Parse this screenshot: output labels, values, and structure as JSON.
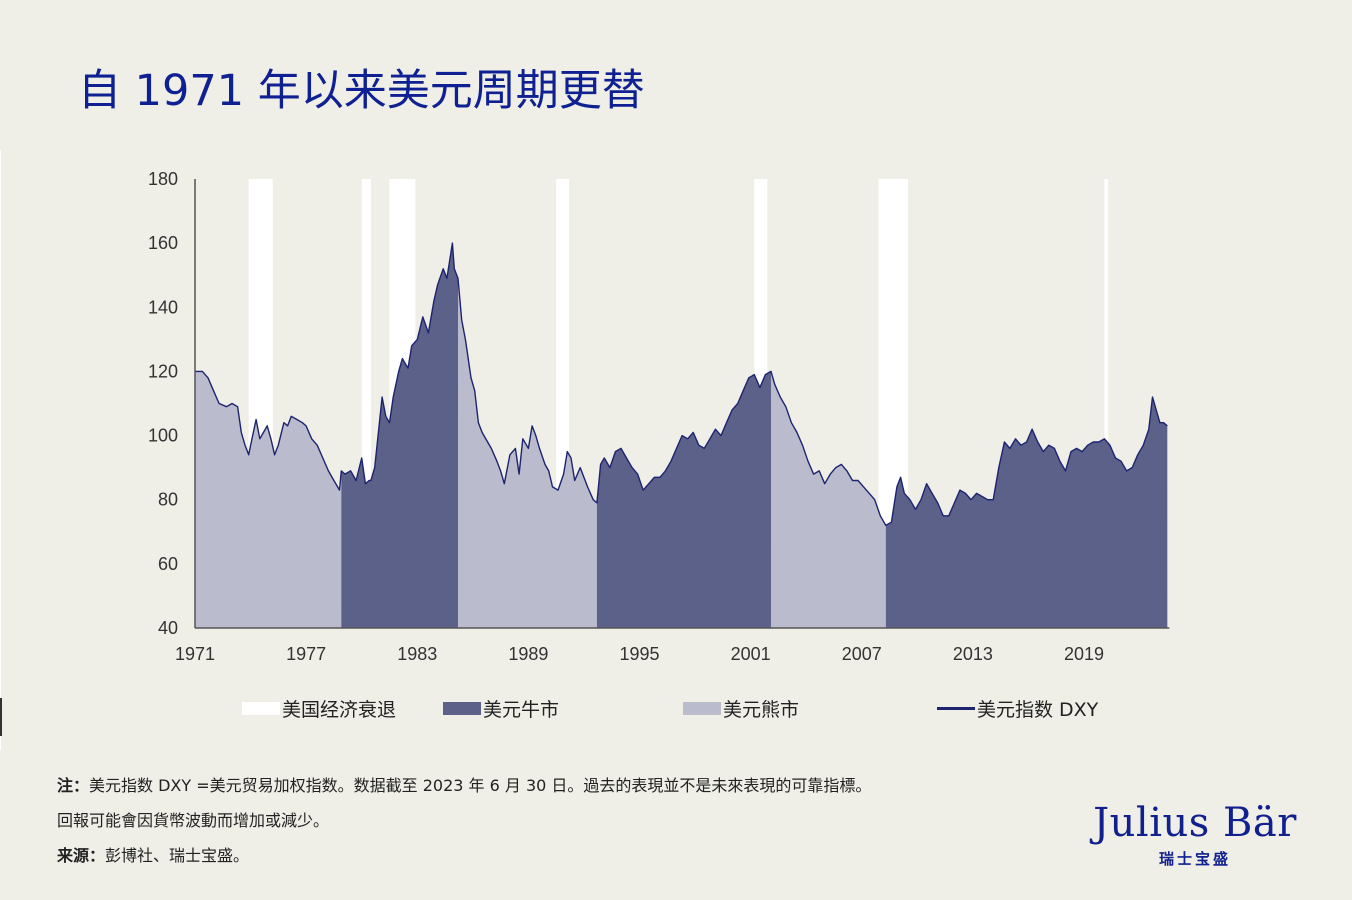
{
  "title": "自 1971 年以来美元周期更替",
  "colors": {
    "background": "#efeee7",
    "title": "#0f2192",
    "recession": "#ffffff",
    "bull": "#5b6189",
    "bear": "#babbcd",
    "dxy_line": "#1c2470",
    "axis": "#555555"
  },
  "legend": {
    "recession": "美国经济衰退",
    "bull": "美元牛市",
    "bear": "美元熊市",
    "dxy": "美元指数 DXY"
  },
  "notes": {
    "note_label": "注：",
    "note_text": "美元指数 DXY =美元贸易加权指数。数据截至 2023 年 6 月 30 日。過去的表現並不是未來表現的可靠指標。",
    "line2": "回報可能會因貨幣波動而增加或減少。",
    "source_label": "来源：",
    "source_text": "彭博社、瑞士宝盛。"
  },
  "logo": {
    "name": "Julius Bär",
    "sub": "瑞士宝盛"
  },
  "chart_data": {
    "type": "area",
    "title": "自 1971 年以来美元周期更替",
    "xlabel": "",
    "ylabel": "",
    "xlim": [
      1971,
      2023.5
    ],
    "ylim": [
      40,
      180
    ],
    "grid": false,
    "legend_position": "bottom",
    "x_ticks": [
      1971,
      1977,
      1983,
      1989,
      1995,
      2001,
      2007,
      2013,
      2019
    ],
    "y_ticks": [
      40,
      60,
      80,
      100,
      120,
      140,
      160,
      180
    ],
    "regimes": [
      {
        "type": "bear",
        "label": "美元熊市",
        "start": 1971.0,
        "end": 1978.9
      },
      {
        "type": "bull",
        "label": "美元牛市",
        "start": 1978.9,
        "end": 1985.2
      },
      {
        "type": "bear",
        "label": "美元熊市",
        "start": 1985.2,
        "end": 1992.7
      },
      {
        "type": "bull",
        "label": "美元牛市",
        "start": 1992.7,
        "end": 2002.1
      },
      {
        "type": "bear",
        "label": "美元熊市",
        "start": 2002.1,
        "end": 2008.3
      },
      {
        "type": "bull",
        "label": "美元牛市",
        "start": 2008.3,
        "end": 2023.5
      }
    ],
    "recessions": [
      {
        "start": 1973.9,
        "end": 1975.2
      },
      {
        "start": 1980.0,
        "end": 1980.5
      },
      {
        "start": 1981.5,
        "end": 1982.9
      },
      {
        "start": 1990.5,
        "end": 1991.2
      },
      {
        "start": 2001.2,
        "end": 2001.9
      },
      {
        "start": 2007.9,
        "end": 2009.5
      },
      {
        "start": 2020.1,
        "end": 2020.3
      }
    ],
    "series": [
      {
        "name": "美元指数 DXY",
        "x": [
          1971.0,
          1971.4,
          1971.7,
          1972.0,
          1972.3,
          1972.7,
          1973.0,
          1973.3,
          1973.5,
          1973.7,
          1973.9,
          1974.0,
          1974.3,
          1974.5,
          1974.7,
          1974.9,
          1975.1,
          1975.3,
          1975.5,
          1975.8,
          1976.0,
          1976.2,
          1976.5,
          1976.8,
          1977.0,
          1977.3,
          1977.6,
          1977.9,
          1978.2,
          1978.5,
          1978.8,
          1978.9,
          1979.1,
          1979.4,
          1979.7,
          1980.0,
          1980.2,
          1980.4,
          1980.5,
          1980.7,
          1980.9,
          1981.1,
          1981.3,
          1981.5,
          1981.7,
          1982.0,
          1982.2,
          1982.5,
          1982.7,
          1983.0,
          1983.3,
          1983.6,
          1983.9,
          1984.1,
          1984.4,
          1984.6,
          1984.9,
          1985.0,
          1985.2,
          1985.4,
          1985.6,
          1985.9,
          1986.1,
          1986.3,
          1986.5,
          1986.8,
          1987.0,
          1987.3,
          1987.5,
          1987.7,
          1988.0,
          1988.3,
          1988.5,
          1988.7,
          1989.0,
          1989.2,
          1989.4,
          1989.6,
          1989.9,
          1990.1,
          1990.3,
          1990.6,
          1990.9,
          1991.1,
          1991.3,
          1991.5,
          1991.8,
          1992.0,
          1992.2,
          1992.5,
          1992.7,
          1992.9,
          1993.1,
          1993.4,
          1993.7,
          1994.0,
          1994.3,
          1994.6,
          1994.9,
          1995.2,
          1995.5,
          1995.8,
          1996.1,
          1996.4,
          1996.7,
          1997.0,
          1997.3,
          1997.6,
          1997.9,
          1998.2,
          1998.5,
          1998.8,
          1999.1,
          1999.4,
          1999.7,
          2000.0,
          2000.3,
          2000.6,
          2000.9,
          2001.2,
          2001.5,
          2001.8,
          2002.1,
          2002.3,
          2002.6,
          2002.9,
          2003.2,
          2003.5,
          2003.8,
          2004.1,
          2004.4,
          2004.7,
          2005.0,
          2005.3,
          2005.6,
          2005.9,
          2006.2,
          2006.5,
          2006.8,
          2007.1,
          2007.4,
          2007.7,
          2008.0,
          2008.3,
          2008.6,
          2008.9,
          2009.1,
          2009.3,
          2009.6,
          2009.9,
          2010.2,
          2010.5,
          2010.8,
          2011.1,
          2011.4,
          2011.7,
          2012.0,
          2012.3,
          2012.6,
          2012.9,
          2013.2,
          2013.5,
          2013.8,
          2014.1,
          2014.4,
          2014.7,
          2015.0,
          2015.3,
          2015.6,
          2015.9,
          2016.2,
          2016.5,
          2016.8,
          2017.1,
          2017.4,
          2017.7,
          2018.0,
          2018.3,
          2018.6,
          2018.9,
          2019.2,
          2019.5,
          2019.8,
          2020.1,
          2020.4,
          2020.7,
          2021.0,
          2021.3,
          2021.6,
          2021.9,
          2022.2,
          2022.5,
          2022.7,
          2022.9,
          2023.1,
          2023.3,
          2023.5
        ],
        "values": [
          120,
          120,
          118,
          114,
          110,
          109,
          110,
          109,
          101,
          97,
          94,
          97,
          105,
          99,
          101,
          103,
          99,
          94,
          97,
          104,
          103,
          106,
          105,
          104,
          103,
          99,
          97,
          93,
          89,
          86,
          83,
          89,
          88,
          89,
          86,
          93,
          85,
          86,
          86,
          90,
          101,
          112,
          106,
          104,
          112,
          120,
          124,
          121,
          128,
          130,
          137,
          132,
          142,
          147,
          152,
          149,
          160,
          152,
          149,
          136,
          130,
          118,
          114,
          104,
          101,
          98,
          96,
          92,
          89,
          85,
          94,
          96,
          88,
          99,
          96,
          103,
          100,
          96,
          91,
          89,
          84,
          83,
          88,
          95,
          93,
          86,
          90,
          87,
          84,
          80,
          79,
          91,
          93,
          90,
          95,
          96,
          93,
          90,
          88,
          83,
          85,
          87,
          87,
          89,
          92,
          96,
          100,
          99,
          101,
          97,
          96,
          99,
          102,
          100,
          104,
          108,
          110,
          114,
          118,
          119,
          115,
          119,
          120,
          116,
          112,
          109,
          104,
          101,
          97,
          92,
          88,
          89,
          85,
          88,
          90,
          91,
          89,
          86,
          86,
          84,
          82,
          80,
          75,
          72,
          73,
          84,
          87,
          82,
          80,
          77,
          80,
          85,
          82,
          79,
          75,
          75,
          79,
          83,
          82,
          80,
          82,
          81,
          80,
          80,
          90,
          98,
          96,
          99,
          97,
          98,
          102,
          98,
          95,
          97,
          96,
          92,
          89,
          95,
          96,
          95,
          97,
          98,
          98,
          99,
          97,
          93,
          92,
          89,
          90,
          94,
          97,
          102,
          112,
          108,
          104,
          104,
          103
        ]
      }
    ]
  }
}
